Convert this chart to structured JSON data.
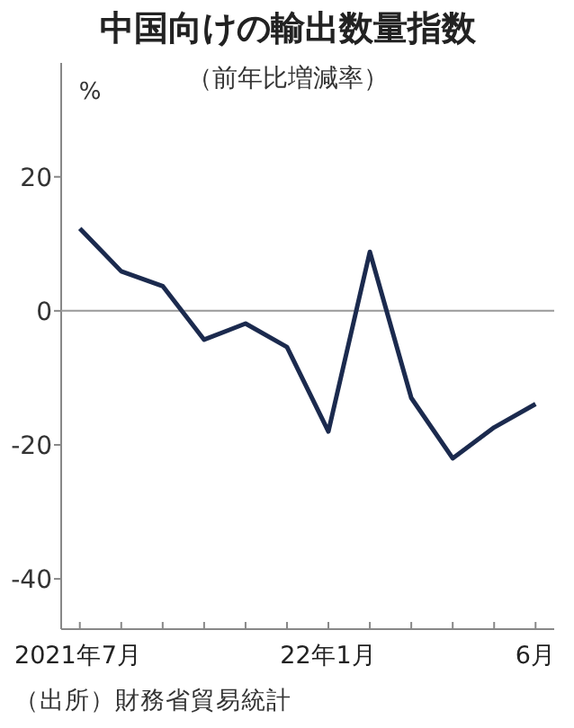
{
  "chart_data": {
    "type": "line",
    "title": "中国向けの輸出数量指数",
    "subtitle": "（前年比増減率）",
    "ylabel": "%",
    "annotations": [
      "（出所）財務省貿易統計"
    ],
    "categories": [
      "2021年7月",
      null,
      null,
      null,
      null,
      null,
      "22年1月",
      null,
      null,
      null,
      null,
      "6月"
    ],
    "series": [
      {
        "color": "#1b2a4e",
        "values": [
          12.3,
          5.9,
          3.7,
          -4.3,
          -1.9,
          -5.4,
          -18.0,
          8.8,
          -13.0,
          -22.0,
          -17.4,
          -13.9
        ]
      }
    ],
    "ylim": [
      -47.5,
      37
    ],
    "yticks": [
      -40,
      -20,
      0,
      20
    ],
    "ref_lines": [
      {
        "axis": "y",
        "value": 0,
        "color": "#999999"
      }
    ]
  }
}
